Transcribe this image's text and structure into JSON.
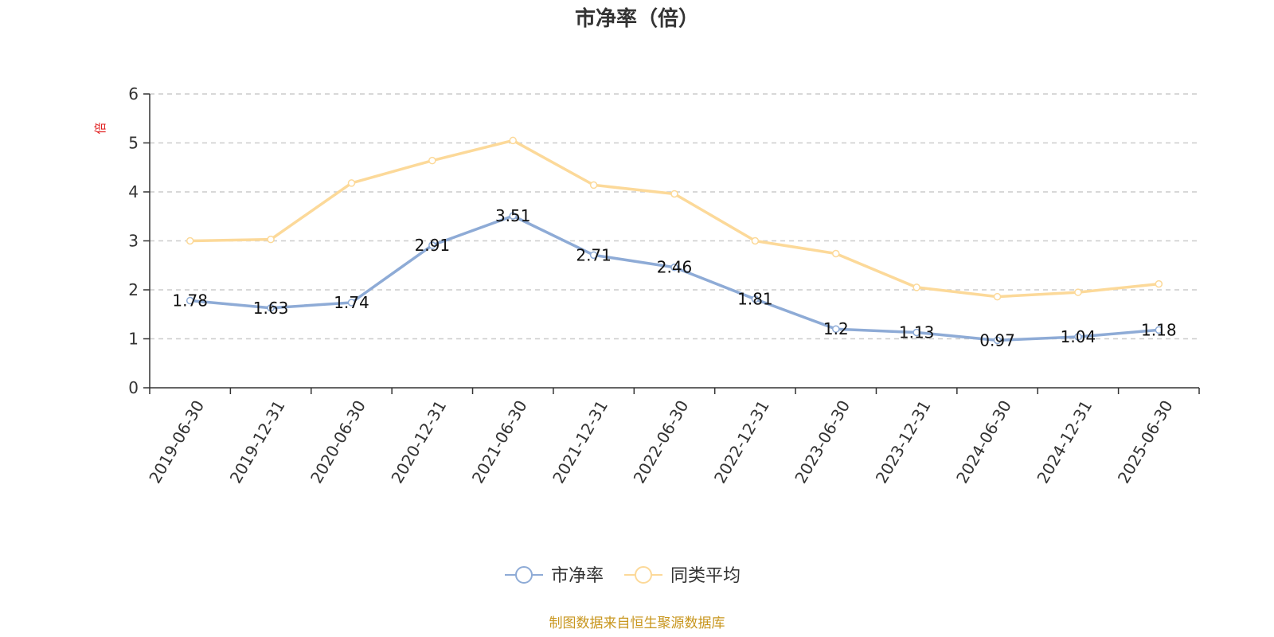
{
  "chart_data": {
    "type": "line",
    "title": "市净率（倍）",
    "ylabel": "倍",
    "ylim": [
      0,
      6
    ],
    "yticks": [
      0,
      1,
      2,
      3,
      4,
      5,
      6
    ],
    "grid": true,
    "legend_position": "bottom",
    "categories": [
      "2019-06-30",
      "2019-12-31",
      "2020-06-30",
      "2020-12-31",
      "2021-06-30",
      "2021-12-31",
      "2022-06-30",
      "2022-12-31",
      "2023-06-30",
      "2023-12-31",
      "2024-06-30",
      "2024-12-31",
      "2025-06-30"
    ],
    "series": [
      {
        "name": "市净率",
        "color": "#8eabd6",
        "values": [
          1.78,
          1.63,
          1.74,
          2.91,
          3.51,
          2.71,
          2.46,
          1.81,
          1.2,
          1.13,
          0.97,
          1.04,
          1.18
        ],
        "labels": [
          "1.78",
          "1.63",
          "1.74",
          "2.91",
          "3.51",
          "2.71",
          "2.46",
          "1.81",
          "1.2",
          "1.13",
          "0.97",
          "1.04",
          "1.18"
        ]
      },
      {
        "name": "同类平均",
        "color": "#fcd999",
        "values": [
          3.0,
          3.03,
          4.18,
          4.64,
          5.05,
          4.14,
          3.96,
          3.0,
          2.74,
          2.05,
          1.86,
          1.95,
          2.12
        ]
      }
    ]
  },
  "footer": {
    "source": "制图数据来自恒生聚源数据库"
  },
  "colors": {
    "unit_label": "#e02020",
    "source_text": "#c8961e",
    "axis": "#333333",
    "grid": "#cccccc"
  }
}
